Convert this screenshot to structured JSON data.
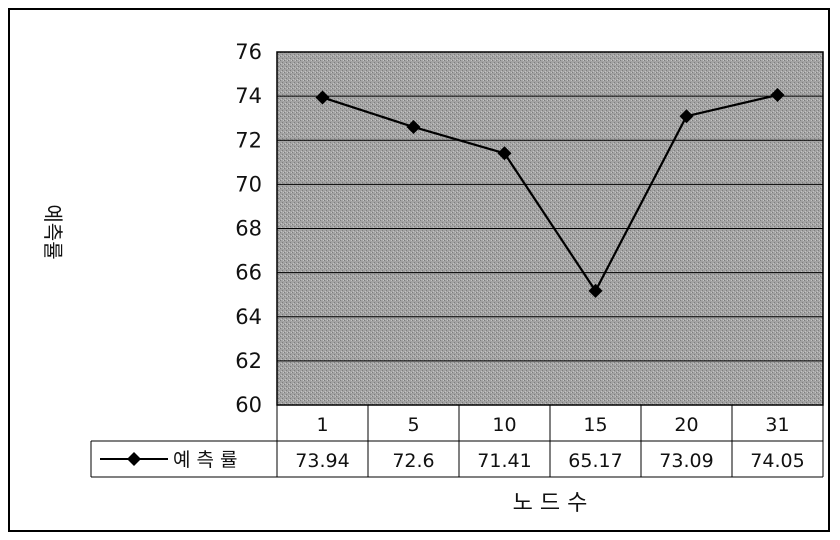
{
  "chart_data": {
    "type": "line",
    "categories": [
      "1",
      "5",
      "10",
      "15",
      "20",
      "31"
    ],
    "series": [
      {
        "name": "예 측 률",
        "values": [
          73.94,
          72.6,
          71.41,
          65.17,
          73.09,
          74.05
        ]
      }
    ],
    "value_labels": [
      "73.94",
      "72.6",
      "71.41",
      "65.17",
      "73.09",
      "74.05"
    ],
    "xlabel": "노 드 수",
    "ylabel": "예측률",
    "ylim": [
      60,
      76
    ],
    "y_ticks": [
      "60",
      "62",
      "64",
      "66",
      "68",
      "70",
      "72",
      "74",
      "76"
    ],
    "grid": true,
    "legend": "data-table",
    "colors": {
      "line": "#000000",
      "plot_area": "#9e9e9e",
      "marker": "#000000"
    }
  }
}
